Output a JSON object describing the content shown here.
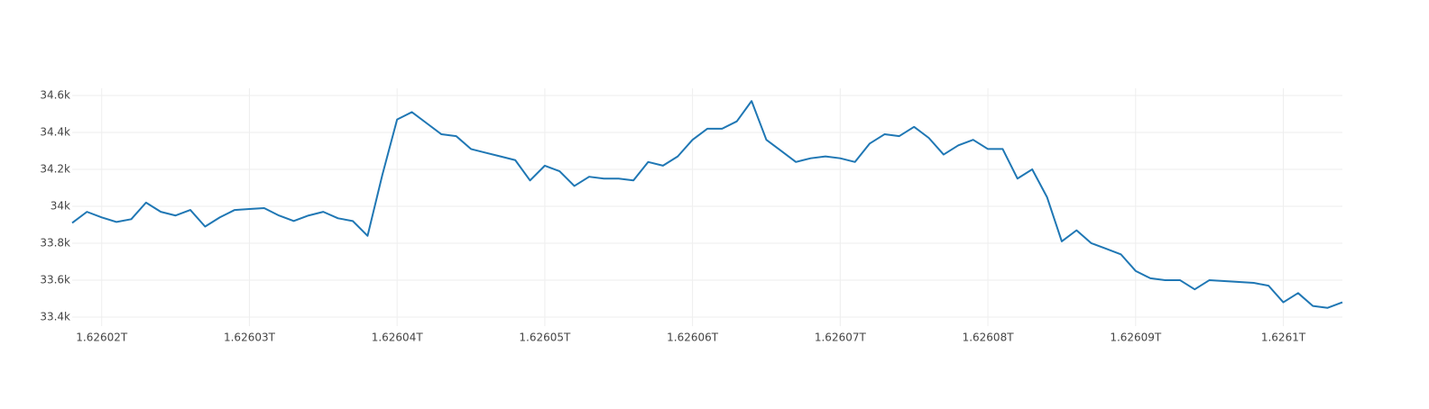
{
  "chart_data": {
    "type": "line",
    "color": "#1f77b4",
    "grid": true,
    "xlim": [
      1626018000000,
      1626104000000
    ],
    "xticks": [
      {
        "value": 1626020000000,
        "label": "1.62602T"
      },
      {
        "value": 1626030000000,
        "label": "1.62603T"
      },
      {
        "value": 1626040000000,
        "label": "1.62604T"
      },
      {
        "value": 1626050000000,
        "label": "1.62605T"
      },
      {
        "value": 1626060000000,
        "label": "1.62606T"
      },
      {
        "value": 1626070000000,
        "label": "1.62607T"
      },
      {
        "value": 1626080000000,
        "label": "1.62608T"
      },
      {
        "value": 1626090000000,
        "label": "1.62609T"
      },
      {
        "value": 1626100000000,
        "label": "1.6261T"
      }
    ],
    "ylim": [
      33351,
      34639
    ],
    "yticks": [
      {
        "value": 33400,
        "label": "33.4k"
      },
      {
        "value": 33600,
        "label": "33.6k"
      },
      {
        "value": 33800,
        "label": "33.8k"
      },
      {
        "value": 34000,
        "label": "34k"
      },
      {
        "value": 34200,
        "label": "34.2k"
      },
      {
        "value": 34400,
        "label": "34.4k"
      },
      {
        "value": 34600,
        "label": "34.6k"
      }
    ],
    "x": [
      1626018000000,
      1626019000000,
      1626020000000,
      1626021000000,
      1626022000000,
      1626023000000,
      1626024000000,
      1626025000000,
      1626026000000,
      1626027000000,
      1626028000000,
      1626029000000,
      1626030000000,
      1626031000000,
      1626032000000,
      1626033000000,
      1626034000000,
      1626035000000,
      1626036000000,
      1626037000000,
      1626038000000,
      1626039000000,
      1626040000000,
      1626041000000,
      1626042000000,
      1626043000000,
      1626044000000,
      1626045000000,
      1626046000000,
      1626047000000,
      1626048000000,
      1626049000000,
      1626050000000,
      1626051000000,
      1626052000000,
      1626053000000,
      1626054000000,
      1626055000000,
      1626056000000,
      1626057000000,
      1626058000000,
      1626059000000,
      1626060000000,
      1626061000000,
      1626062000000,
      1626063000000,
      1626064000000,
      1626065000000,
      1626066000000,
      1626067000000,
      1626068000000,
      1626069000000,
      1626070000000,
      1626071000000,
      1626072000000,
      1626073000000,
      1626074000000,
      1626075000000,
      1626076000000,
      1626077000000,
      1626078000000,
      1626079000000,
      1626080000000,
      1626081000000,
      1626082000000,
      1626083000000,
      1626084000000,
      1626085000000,
      1626086000000,
      1626087000000,
      1626088000000,
      1626089000000,
      1626090000000,
      1626091000000,
      1626092000000,
      1626093000000,
      1626094000000,
      1626095000000,
      1626096000000,
      1626097000000,
      1626098000000,
      1626099000000,
      1626100000000,
      1626101000000,
      1626102000000,
      1626103000000,
      1626104000000
    ],
    "values": [
      33910,
      33970,
      33940,
      33915,
      33930,
      34020,
      33970,
      33950,
      33980,
      33890,
      33940,
      33980,
      33985,
      33990,
      33950,
      33920,
      33950,
      33970,
      33935,
      33920,
      33840,
      34170,
      34470,
      34510,
      34450,
      34390,
      34380,
      34310,
      34290,
      34270,
      34250,
      34140,
      34220,
      34190,
      34110,
      34160,
      34150,
      34150,
      34140,
      34240,
      34220,
      34270,
      34360,
      34420,
      34420,
      34460,
      34570,
      34360,
      34300,
      34240,
      34260,
      34270,
      34260,
      34240,
      34340,
      34390,
      34380,
      34430,
      34370,
      34280,
      34330,
      34360,
      34310,
      34310,
      34150,
      34200,
      34050,
      33810,
      33870,
      33800,
      33770,
      33740,
      33650,
      33610,
      33600,
      33600,
      33550,
      33600,
      33595,
      33590,
      33585,
      33570,
      33480,
      33530,
      33460,
      33450,
      33480
    ]
  }
}
